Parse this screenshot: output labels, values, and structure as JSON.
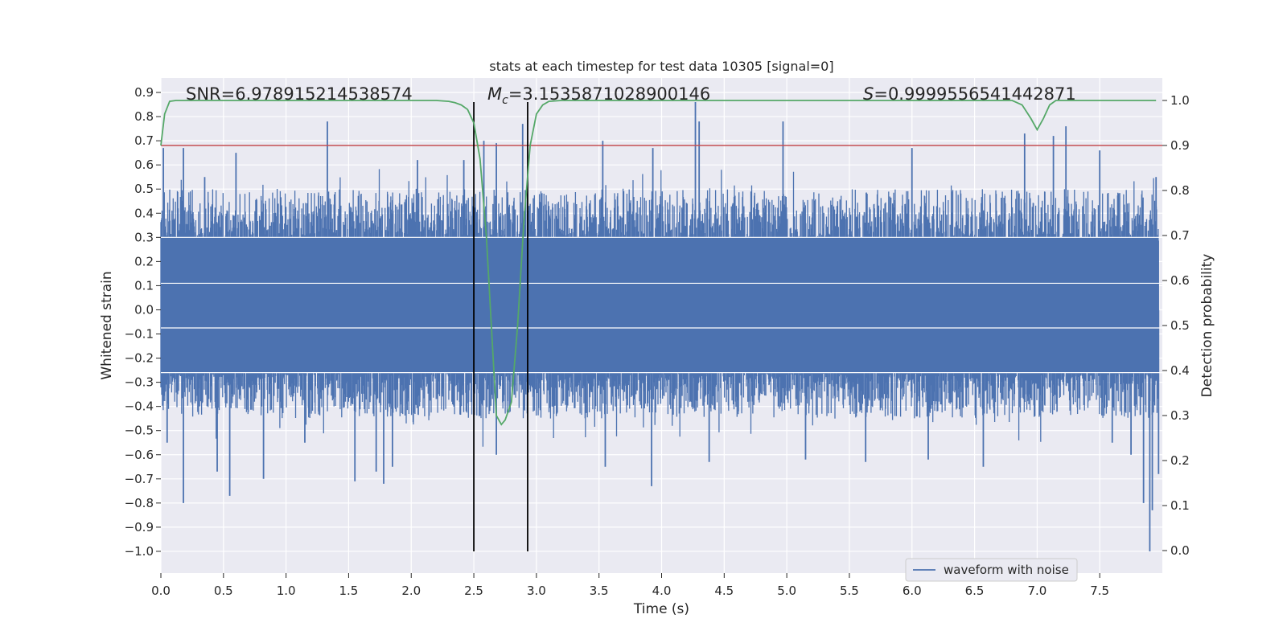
{
  "chart_data": {
    "type": "line",
    "title": "stats at each timestep for test data 10305 [signal=0]",
    "xlabel": "Time (s)",
    "ylabel": "Whitened strain",
    "y2label": "Detection probability",
    "xlim": [
      0.0,
      8.0
    ],
    "ylim": [
      -1.09,
      0.96
    ],
    "y2lim": [
      -0.05,
      1.05
    ],
    "xticks": [
      0.0,
      0.5,
      1.0,
      1.5,
      2.0,
      2.5,
      3.0,
      3.5,
      4.0,
      4.5,
      5.0,
      5.5,
      6.0,
      6.5,
      7.0,
      7.5
    ],
    "xtick_labels": [
      "0.0",
      "0.5",
      "1.0",
      "1.5",
      "2.0",
      "2.5",
      "3.0",
      "3.5",
      "4.0",
      "4.5",
      "5.0",
      "5.5",
      "6.0",
      "6.5",
      "7.0",
      "7.5"
    ],
    "yticks": [
      0.9,
      0.8,
      0.7,
      0.6,
      0.5,
      0.4,
      0.3,
      0.2,
      0.1,
      0.0,
      -0.1,
      -0.2,
      -0.3,
      -0.4,
      -0.5,
      -0.6,
      -0.7,
      -0.8,
      -0.9,
      -1.0
    ],
    "ytick_labels": [
      "0.9",
      "0.8",
      "0.7",
      "0.6",
      "0.5",
      "0.4",
      "0.3",
      "0.2",
      "0.1",
      "0.0",
      "−0.1",
      "−0.2",
      "−0.3",
      "−0.4",
      "−0.5",
      "−0.6",
      "−0.7",
      "−0.8",
      "−0.9",
      "−1.0"
    ],
    "y2ticks": [
      0.0,
      0.1,
      0.2,
      0.3,
      0.4,
      0.5,
      0.6,
      0.7,
      0.8,
      0.9,
      1.0
    ],
    "y2tick_labels": [
      "0.0",
      "0.1",
      "0.2",
      "0.3",
      "0.4",
      "0.5",
      "0.6",
      "0.7",
      "0.8",
      "0.9",
      "1.0"
    ],
    "grid": true,
    "legend_position": "lower-right",
    "annotations": {
      "snr": "SNR=6.978915214538574",
      "mc_prefix": "M",
      "mc_sub": "c",
      "mc_value": "=3.1535871028900146",
      "s_prefix": "S",
      "s_value": "=0.9999556541442871"
    },
    "series": [
      {
        "name": "waveform with noise",
        "color": "#4c72b0",
        "axis": "left",
        "kind": "noise",
        "band_upper": 0.5,
        "band_lower": -0.45,
        "peaks": [
          {
            "x": 0.02,
            "y": 0.67
          },
          {
            "x": 0.05,
            "y": -0.55
          },
          {
            "x": 0.18,
            "y": -0.8
          },
          {
            "x": 0.18,
            "y": 0.67
          },
          {
            "x": 0.35,
            "y": 0.55
          },
          {
            "x": 0.45,
            "y": -0.67
          },
          {
            "x": 0.55,
            "y": -0.77
          },
          {
            "x": 0.6,
            "y": 0.65
          },
          {
            "x": 0.82,
            "y": -0.7
          },
          {
            "x": 1.15,
            "y": -0.55
          },
          {
            "x": 1.33,
            "y": 0.78
          },
          {
            "x": 1.55,
            "y": -0.71
          },
          {
            "x": 1.72,
            "y": -0.67
          },
          {
            "x": 1.78,
            "y": -0.72
          },
          {
            "x": 1.85,
            "y": -0.65
          },
          {
            "x": 2.05,
            "y": 0.62
          },
          {
            "x": 2.42,
            "y": 0.62
          },
          {
            "x": 2.58,
            "y": 0.7
          },
          {
            "x": 2.68,
            "y": -0.6
          },
          {
            "x": 2.68,
            "y": 0.69
          },
          {
            "x": 2.89,
            "y": 0.77
          },
          {
            "x": 3.53,
            "y": 0.7
          },
          {
            "x": 3.55,
            "y": -0.65
          },
          {
            "x": 3.92,
            "y": -0.73
          },
          {
            "x": 3.93,
            "y": 0.67
          },
          {
            "x": 4.27,
            "y": 0.86
          },
          {
            "x": 4.3,
            "y": 0.78
          },
          {
            "x": 4.38,
            "y": -0.63
          },
          {
            "x": 4.97,
            "y": 0.78
          },
          {
            "x": 5.15,
            "y": -0.62
          },
          {
            "x": 5.63,
            "y": -0.63
          },
          {
            "x": 6.0,
            "y": 0.67
          },
          {
            "x": 6.13,
            "y": -0.62
          },
          {
            "x": 6.57,
            "y": -0.65
          },
          {
            "x": 6.9,
            "y": 0.73
          },
          {
            "x": 7.13,
            "y": 0.72
          },
          {
            "x": 7.23,
            "y": 0.76
          },
          {
            "x": 7.5,
            "y": 0.66
          },
          {
            "x": 7.6,
            "y": -0.55
          },
          {
            "x": 7.75,
            "y": -0.6
          },
          {
            "x": 7.85,
            "y": -0.8
          },
          {
            "x": 7.9,
            "y": -1.0
          },
          {
            "x": 7.92,
            "y": -0.83
          },
          {
            "x": 7.97,
            "y": -0.68
          },
          {
            "x": 7.95,
            "y": 0.55
          }
        ]
      },
      {
        "color": "#55a868",
        "axis": "right",
        "x": [
          0.0,
          0.03,
          0.07,
          0.12,
          0.3,
          0.6,
          1.0,
          1.5,
          2.0,
          2.2,
          2.3,
          2.35,
          2.4,
          2.45,
          2.5,
          2.55,
          2.6,
          2.65,
          2.68,
          2.72,
          2.75,
          2.8,
          2.85,
          2.9,
          2.95,
          3.0,
          3.05,
          3.1,
          3.2,
          3.5,
          4.0,
          5.0,
          5.5,
          6.0,
          6.5,
          6.8,
          6.88,
          6.95,
          7.0,
          7.05,
          7.1,
          7.15,
          7.3,
          7.5,
          7.95
        ],
        "y": [
          0.9,
          0.97,
          0.998,
          1.0,
          1.0,
          1.0,
          1.0,
          1.0,
          1.0,
          1.0,
          0.998,
          0.995,
          0.99,
          0.98,
          0.95,
          0.87,
          0.7,
          0.45,
          0.3,
          0.28,
          0.29,
          0.33,
          0.5,
          0.73,
          0.9,
          0.97,
          0.99,
          0.998,
          1.0,
          1.0,
          1.0,
          1.0,
          1.0,
          1.0,
          1.0,
          1.0,
          0.99,
          0.96,
          0.935,
          0.96,
          0.99,
          1.0,
          1.0,
          1.0,
          1.0
        ]
      },
      {
        "color": "#c44e52",
        "axis": "right",
        "kind": "hline",
        "y": 0.9
      }
    ],
    "vlines": [
      2.5,
      2.93
    ],
    "vline_ymin": -1.0,
    "vline_ymax": 0.86
  }
}
